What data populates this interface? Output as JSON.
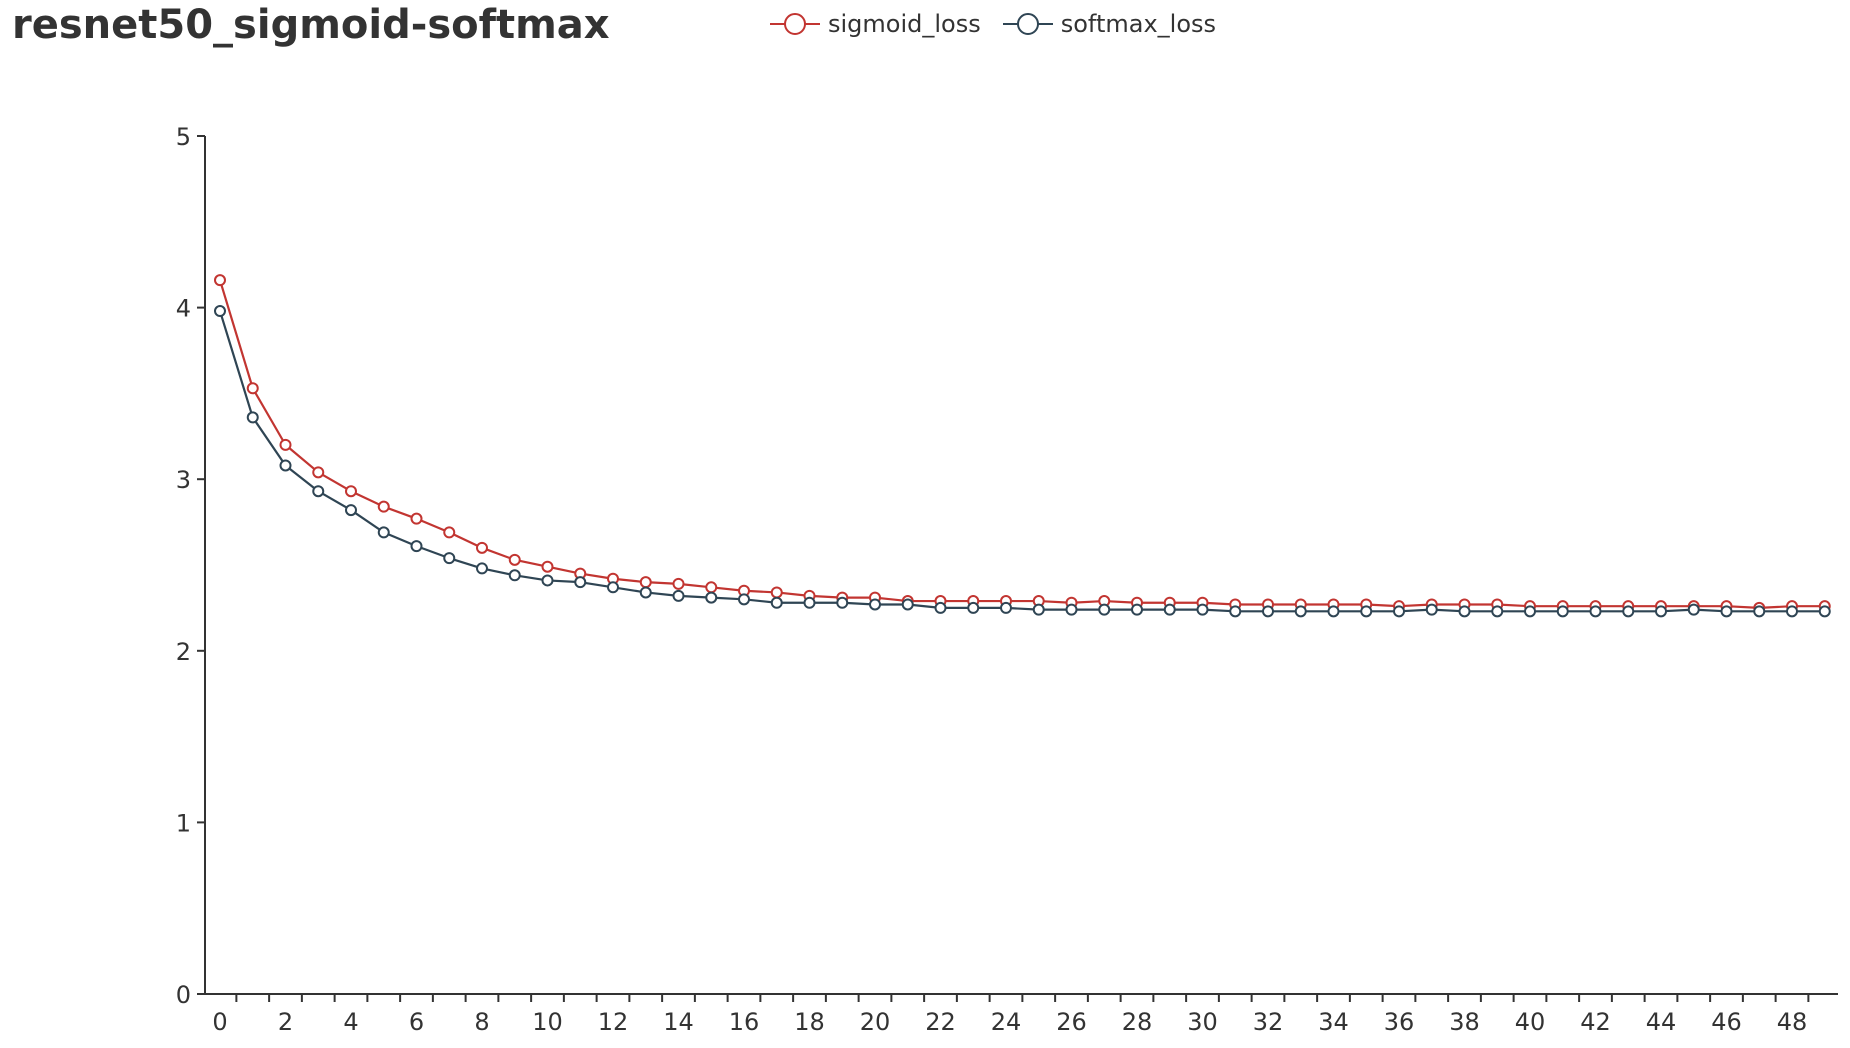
{
  "title": "resnet50_sigmoid-softmax",
  "colors": {
    "axis": "#333333"
  },
  "chart_data": {
    "type": "line",
    "title": "resnet50_sigmoid-softmax",
    "xlabel": "",
    "ylabel": "",
    "xlim": [
      0,
      49
    ],
    "ylim": [
      0,
      5
    ],
    "xticks": [
      "0",
      "2",
      "4",
      "6",
      "8",
      "10",
      "12",
      "14",
      "16",
      "18",
      "20",
      "22",
      "24",
      "26",
      "28",
      "30",
      "32",
      "34",
      "36",
      "38",
      "40",
      "42",
      "44",
      "46",
      "48"
    ],
    "yticks": [
      "0",
      "1",
      "2",
      "3",
      "4",
      "5"
    ],
    "grid": false,
    "legend_position": "top",
    "x": [
      0,
      1,
      2,
      3,
      4,
      5,
      6,
      7,
      8,
      9,
      10,
      11,
      12,
      13,
      14,
      15,
      16,
      17,
      18,
      19,
      20,
      21,
      22,
      23,
      24,
      25,
      26,
      27,
      28,
      29,
      30,
      31,
      32,
      33,
      34,
      35,
      36,
      37,
      38,
      39,
      40,
      41,
      42,
      43,
      44,
      45,
      46,
      47,
      48,
      49
    ],
    "series": [
      {
        "name": "sigmoid_loss",
        "color": "#c23531",
        "values": [
          4.16,
          3.53,
          3.2,
          3.04,
          2.93,
          2.84,
          2.77,
          2.69,
          2.6,
          2.53,
          2.49,
          2.45,
          2.42,
          2.4,
          2.39,
          2.37,
          2.35,
          2.34,
          2.32,
          2.31,
          2.31,
          2.29,
          2.29,
          2.29,
          2.29,
          2.29,
          2.28,
          2.29,
          2.28,
          2.28,
          2.28,
          2.27,
          2.27,
          2.27,
          2.27,
          2.27,
          2.26,
          2.27,
          2.27,
          2.27,
          2.26,
          2.26,
          2.26,
          2.26,
          2.26,
          2.26,
          2.26,
          2.25,
          2.26,
          2.26
        ]
      },
      {
        "name": "softmax_loss",
        "color": "#2f4554",
        "values": [
          3.98,
          3.36,
          3.08,
          2.93,
          2.82,
          2.69,
          2.61,
          2.54,
          2.48,
          2.44,
          2.41,
          2.4,
          2.37,
          2.34,
          2.32,
          2.31,
          2.3,
          2.28,
          2.28,
          2.28,
          2.27,
          2.27,
          2.25,
          2.25,
          2.25,
          2.24,
          2.24,
          2.24,
          2.24,
          2.24,
          2.24,
          2.23,
          2.23,
          2.23,
          2.23,
          2.23,
          2.23,
          2.24,
          2.23,
          2.23,
          2.23,
          2.23,
          2.23,
          2.23,
          2.23,
          2.24,
          2.23,
          2.23,
          2.23,
          2.23
        ]
      }
    ]
  }
}
